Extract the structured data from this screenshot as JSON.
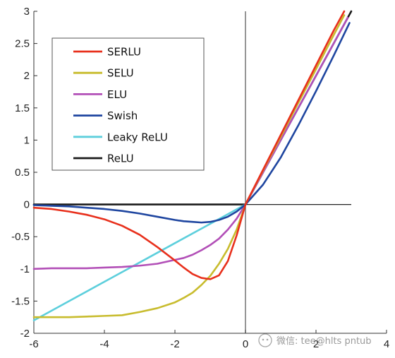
{
  "chart_data": {
    "type": "line",
    "title": "",
    "xlabel": "",
    "ylabel": "",
    "xlim": [
      -6,
      4
    ],
    "ylim": [
      -2,
      3
    ],
    "xticks": [
      -6,
      -4,
      -2,
      0,
      2,
      4
    ],
    "yticks": [
      -2,
      -1.5,
      -1,
      -0.5,
      0,
      0.5,
      1,
      1.5,
      2,
      2.5,
      3
    ],
    "xtick_labels": [
      "-6",
      "-4",
      "-2",
      "0",
      "2",
      "4"
    ],
    "ytick_labels": [
      "-2",
      "-1.5",
      "-1",
      "-0.5",
      "0",
      "0.5",
      "1",
      "1.5",
      "2",
      "2.5",
      "3"
    ],
    "grid": false,
    "legend_position": "top-left",
    "series": [
      {
        "name": "SERLU",
        "color": "#e8301c",
        "x": [
          -6,
          -5.5,
          -5,
          -4.5,
          -4,
          -3.5,
          -3,
          -2.5,
          -2,
          -1.75,
          -1.5,
          -1.25,
          -1,
          -0.75,
          -0.5,
          -0.25,
          0,
          0.5,
          1,
          1.5,
          2,
          2.5,
          2.8
        ],
        "y": [
          -0.05,
          -0.07,
          -0.11,
          -0.16,
          -0.23,
          -0.33,
          -0.47,
          -0.66,
          -0.87,
          -0.98,
          -1.08,
          -1.14,
          -1.16,
          -1.1,
          -0.88,
          -0.48,
          0,
          0.54,
          1.08,
          1.62,
          2.16,
          2.7,
          3.0
        ]
      },
      {
        "name": "SELU",
        "color": "#c8bc2e",
        "x": [
          -6,
          -5.5,
          -5,
          -4.5,
          -4,
          -3.5,
          -3,
          -2.5,
          -2,
          -1.75,
          -1.5,
          -1.25,
          -1,
          -0.75,
          -0.5,
          -0.25,
          0,
          0.5,
          1,
          1.5,
          2,
          2.5,
          2.8
        ],
        "y": [
          -1.75,
          -1.75,
          -1.75,
          -1.74,
          -1.73,
          -1.72,
          -1.67,
          -1.61,
          -1.52,
          -1.45,
          -1.37,
          -1.25,
          -1.11,
          -0.92,
          -0.69,
          -0.39,
          0,
          0.53,
          1.05,
          1.58,
          2.1,
          2.63,
          2.94
        ]
      },
      {
        "name": "ELU",
        "color": "#b24fb7",
        "x": [
          -6,
          -5.5,
          -5,
          -4.5,
          -4,
          -3.5,
          -3,
          -2.5,
          -2,
          -1.75,
          -1.5,
          -1.25,
          -1,
          -0.75,
          -0.5,
          -0.25,
          0,
          0.5,
          1,
          1.5,
          2,
          2.5,
          2.9
        ],
        "y": [
          -1.0,
          -0.99,
          -0.99,
          -0.99,
          -0.98,
          -0.97,
          -0.95,
          -0.92,
          -0.86,
          -0.83,
          -0.78,
          -0.71,
          -0.63,
          -0.53,
          -0.39,
          -0.22,
          0,
          0.5,
          1.0,
          1.5,
          2.0,
          2.5,
          2.9
        ]
      },
      {
        "name": "Swish",
        "color": "#1f46a0",
        "x": [
          -6,
          -5.5,
          -5,
          -4.5,
          -4,
          -3.5,
          -3,
          -2.5,
          -2,
          -1.75,
          -1.5,
          -1.25,
          -1,
          -0.75,
          -0.5,
          -0.25,
          0,
          0.5,
          1,
          1.5,
          2,
          2.5,
          2.95
        ],
        "y": [
          -0.01,
          -0.02,
          -0.03,
          -0.05,
          -0.07,
          -0.1,
          -0.14,
          -0.19,
          -0.24,
          -0.26,
          -0.27,
          -0.28,
          -0.27,
          -0.24,
          -0.19,
          -0.11,
          0,
          0.31,
          0.73,
          1.23,
          1.76,
          2.31,
          2.82
        ]
      },
      {
        "name": "Leaky ReLU",
        "color": "#5dcfdc",
        "x": [
          -6,
          -5,
          -4,
          -3,
          -2,
          -1,
          0,
          0.5,
          1,
          1.5,
          2,
          2.5,
          2.85
        ],
        "y": [
          -1.8,
          -1.5,
          -1.2,
          -0.9,
          -0.6,
          -0.3,
          0,
          0.5,
          1.0,
          1.5,
          2.0,
          2.5,
          2.85
        ]
      },
      {
        "name": "ReLU",
        "color": "#1b1b1b",
        "x": [
          -6,
          -4,
          -2,
          -1,
          0,
          0.5,
          1,
          1.5,
          2,
          2.5,
          3.0
        ],
        "y": [
          0,
          0,
          0,
          0,
          0,
          0.5,
          1.0,
          1.5,
          2.0,
          2.5,
          3.0
        ]
      }
    ]
  },
  "watermark": {
    "text": "微信: tee@hlts pntub"
  }
}
